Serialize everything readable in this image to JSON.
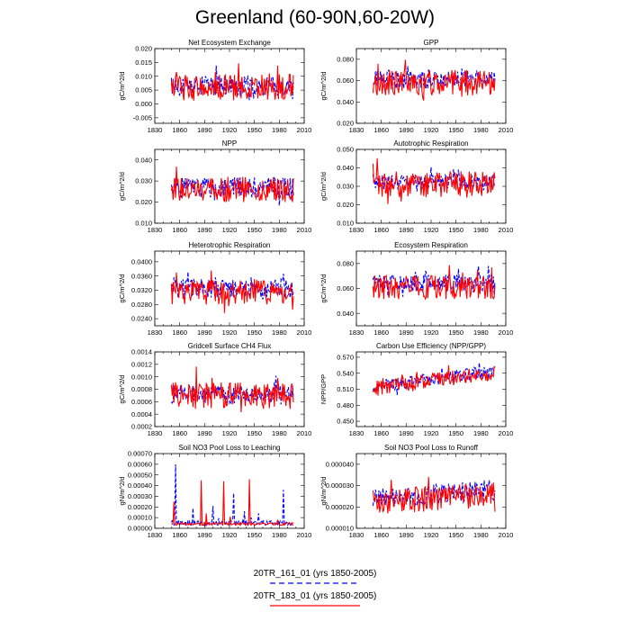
{
  "figure": {
    "title": "Greenland (60-90N,60-20W)",
    "legend": [
      {
        "label": "20TR_161_01 (yrs 1850-2005)",
        "color": "#0000ff",
        "dash": "dashed"
      },
      {
        "label": "20TR_183_01 (yrs 1850-2005)",
        "color": "#ff0000",
        "dash": "solid"
      }
    ]
  },
  "chart_data": [
    {
      "type": "line",
      "title": "Net Ecosystem Exchange",
      "ylabel": "gC/m^2/d",
      "xlim": [
        1830,
        2010
      ],
      "xticks": [
        1830,
        1860,
        1890,
        1920,
        1950,
        1980,
        2010
      ],
      "ylim": [
        -0.007,
        0.02
      ],
      "yticks": [
        -0.005,
        0.0,
        0.005,
        0.01,
        0.015,
        0.02
      ],
      "ytick_labels": [
        "-0.005",
        "0.000",
        "0.005",
        "0.010",
        "0.015",
        "0.020"
      ],
      "x_start": 1850,
      "x_step": 1,
      "series": [
        {
          "color": "#0000ff",
          "dash": "dashed",
          "mean": 0.0065,
          "amp": 0.003,
          "lo": -0.002,
          "hi": 0.014,
          "seed": 11
        },
        {
          "color": "#ff0000",
          "dash": "solid",
          "mean": 0.006,
          "amp": 0.004,
          "lo": -0.007,
          "hi": 0.017,
          "seed": 12
        }
      ]
    },
    {
      "type": "line",
      "title": "GPP",
      "ylabel": "gC/m^2/d",
      "xlim": [
        1830,
        2010
      ],
      "xticks": [
        1830,
        1860,
        1890,
        1920,
        1950,
        1980,
        2010
      ],
      "ylim": [
        0.02,
        0.09
      ],
      "yticks": [
        0.02,
        0.04,
        0.06,
        0.08
      ],
      "ytick_labels": [
        "0.020",
        "0.040",
        "0.060",
        "0.080"
      ],
      "x_start": 1850,
      "x_step": 1,
      "series": [
        {
          "color": "#0000ff",
          "dash": "dashed",
          "mean": 0.061,
          "amp": 0.007,
          "lo": 0.04,
          "hi": 0.078,
          "seed": 21
        },
        {
          "color": "#ff0000",
          "dash": "solid",
          "mean": 0.058,
          "amp": 0.01,
          "lo": 0.03,
          "hi": 0.088,
          "seed": 22
        }
      ]
    },
    {
      "type": "line",
      "title": "NPP",
      "ylabel": "gC/m^2/d",
      "xlim": [
        1830,
        2010
      ],
      "xticks": [
        1830,
        1860,
        1890,
        1920,
        1950,
        1980,
        2010
      ],
      "ylim": [
        0.01,
        0.045
      ],
      "yticks": [
        0.01,
        0.02,
        0.03,
        0.04
      ],
      "ytick_labels": [
        "0.010",
        "0.020",
        "0.030",
        "0.040"
      ],
      "x_start": 1850,
      "x_step": 1,
      "series": [
        {
          "color": "#0000ff",
          "dash": "dashed",
          "mean": 0.027,
          "amp": 0.004,
          "lo": 0.015,
          "hi": 0.036,
          "seed": 31
        },
        {
          "color": "#ff0000",
          "dash": "solid",
          "mean": 0.026,
          "amp": 0.005,
          "lo": 0.013,
          "hi": 0.041,
          "seed": 32
        }
      ]
    },
    {
      "type": "line",
      "title": "Autotrophic Respiration",
      "ylabel": "gC/m^2/d",
      "xlim": [
        1830,
        2010
      ],
      "xticks": [
        1830,
        1860,
        1890,
        1920,
        1950,
        1980,
        2010
      ],
      "ylim": [
        0.01,
        0.05
      ],
      "yticks": [
        0.01,
        0.02,
        0.03,
        0.04,
        0.05
      ],
      "ytick_labels": [
        "0.010",
        "0.020",
        "0.030",
        "0.040",
        "0.050"
      ],
      "x_start": 1850,
      "x_step": 1,
      "series": [
        {
          "color": "#0000ff",
          "dash": "dashed",
          "mean": 0.032,
          "amp": 0.004,
          "lo": 0.022,
          "hi": 0.042,
          "seed": 41
        },
        {
          "color": "#ff0000",
          "dash": "solid",
          "mean": 0.031,
          "amp": 0.006,
          "lo": 0.016,
          "hi": 0.046,
          "seed": 42
        }
      ]
    },
    {
      "type": "line",
      "title": "Heterotrophic Respiration",
      "ylabel": "gC/m^2/d",
      "xlim": [
        1830,
        2010
      ],
      "xticks": [
        1830,
        1860,
        1890,
        1920,
        1950,
        1980,
        2010
      ],
      "ylim": [
        0.022,
        0.043
      ],
      "yticks": [
        0.024,
        0.028,
        0.032,
        0.036,
        0.04
      ],
      "ytick_labels": [
        "0.0240",
        "0.0280",
        "0.0320",
        "0.0360",
        "0.0400"
      ],
      "x_start": 1850,
      "x_step": 1,
      "series": [
        {
          "color": "#0000ff",
          "dash": "dashed",
          "mean": 0.0325,
          "amp": 0.0022,
          "lo": 0.026,
          "hi": 0.039,
          "seed": 51
        },
        {
          "color": "#ff0000",
          "dash": "solid",
          "mean": 0.0315,
          "amp": 0.003,
          "lo": 0.025,
          "hi": 0.041,
          "seed": 52
        }
      ]
    },
    {
      "type": "line",
      "title": "Ecosystem Respiration",
      "ylabel": "gC/m^2/d",
      "xlim": [
        1830,
        2010
      ],
      "xticks": [
        1830,
        1860,
        1890,
        1920,
        1950,
        1980,
        2010
      ],
      "ylim": [
        0.03,
        0.09
      ],
      "yticks": [
        0.04,
        0.06,
        0.08
      ],
      "ytick_labels": [
        "0.040",
        "0.060",
        "0.080"
      ],
      "x_start": 1850,
      "x_step": 1,
      "series": [
        {
          "color": "#0000ff",
          "dash": "dashed",
          "mean": 0.064,
          "amp": 0.006,
          "lo": 0.05,
          "hi": 0.078,
          "seed": 61
        },
        {
          "color": "#ff0000",
          "dash": "solid",
          "mean": 0.061,
          "amp": 0.008,
          "lo": 0.04,
          "hi": 0.085,
          "seed": 62
        }
      ]
    },
    {
      "type": "line",
      "title": "Gridcell Surface CH4 Flux",
      "ylabel": "gC/m^2/d",
      "xlim": [
        1830,
        2010
      ],
      "xticks": [
        1830,
        1860,
        1890,
        1920,
        1950,
        1980,
        2010
      ],
      "ylim": [
        0.0002,
        0.0014
      ],
      "yticks": [
        0.0002,
        0.0004,
        0.0006,
        0.0008,
        0.001,
        0.0012,
        0.0014
      ],
      "ytick_labels": [
        "0.0002",
        "0.0004",
        "0.0006",
        "0.0008",
        "0.0010",
        "0.0012",
        "0.0014"
      ],
      "x_start": 1850,
      "x_step": 1,
      "series": [
        {
          "color": "#0000ff",
          "dash": "dashed",
          "mean": 0.00072,
          "amp": 0.00012,
          "lo": 0.0004,
          "hi": 0.0013,
          "seed": 71
        },
        {
          "color": "#ff0000",
          "dash": "solid",
          "mean": 0.0007,
          "amp": 0.00018,
          "lo": 0.00035,
          "hi": 0.00125,
          "seed": 72
        }
      ]
    },
    {
      "type": "line",
      "title": "Carbon Use Efficiency (NPP/GPP)",
      "ylabel": "NPP/GPP",
      "xlim": [
        1830,
        2010
      ],
      "xticks": [
        1830,
        1860,
        1890,
        1920,
        1950,
        1980,
        2010
      ],
      "ylim": [
        0.44,
        0.58
      ],
      "yticks": [
        0.45,
        0.48,
        0.51,
        0.54,
        0.57
      ],
      "ytick_labels": [
        "0.450",
        "0.480",
        "0.510",
        "0.540",
        "0.570"
      ],
      "x_start": 1850,
      "x_step": 1,
      "series": [
        {
          "color": "#0000ff",
          "dash": "dashed",
          "mean": 0.514,
          "amp": 0.01,
          "lo": 0.46,
          "hi": 0.565,
          "seed": 81,
          "trend": 0.03
        },
        {
          "color": "#ff0000",
          "dash": "solid",
          "mean": 0.512,
          "amp": 0.012,
          "lo": 0.47,
          "hi": 0.56,
          "seed": 82,
          "trend": 0.03
        }
      ]
    },
    {
      "type": "line",
      "title": "Soil NO3 Pool Loss to Leaching",
      "ylabel": "gN/m^2/d",
      "xlim": [
        1830,
        2010
      ],
      "xticks": [
        1830,
        1860,
        1890,
        1920,
        1950,
        1980,
        2010
      ],
      "ylim": [
        0.0,
        0.0007
      ],
      "yticks": [
        0.0,
        0.0001,
        0.0002,
        0.0003,
        0.0004,
        0.0005,
        0.0006,
        0.0007
      ],
      "ytick_labels": [
        "0.00000",
        "0.00010",
        "0.00020",
        "0.00030",
        "0.00040",
        "0.00050",
        "0.00060",
        "0.00070"
      ],
      "x_start": 1850,
      "x_step": 1,
      "series": [
        {
          "color": "#0000ff",
          "dash": "dashed",
          "mean": 5e-05,
          "amp": 2e-05,
          "lo": 3e-05,
          "hi": 0.0006,
          "seed": 91,
          "spikes": [
            [
              1855,
              0.0006
            ],
            [
              1876,
              0.00019
            ],
            [
              1900,
              0.00021
            ],
            [
              1925,
              0.00033
            ],
            [
              1938,
              0.00016
            ],
            [
              1955,
              0.00014
            ],
            [
              1985,
              0.00036
            ]
          ]
        },
        {
          "color": "#ff0000",
          "dash": "solid",
          "mean": 4e-05,
          "amp": 1e-05,
          "lo": 2e-05,
          "hi": 0.00047,
          "seed": 92,
          "spikes": [
            [
              1853,
              0.00025
            ],
            [
              1886,
              0.00045
            ],
            [
              1892,
              0.00014
            ],
            [
              1913,
              0.00044
            ],
            [
              1921,
              0.00011
            ],
            [
              1944,
              0.00046
            ],
            [
              1978,
              8e-05
            ]
          ]
        }
      ]
    },
    {
      "type": "line",
      "title": "Soil NO3 Pool Loss to Runoff",
      "ylabel": "gN/m^2/d",
      "xlim": [
        1830,
        2010
      ],
      "xticks": [
        1830,
        1860,
        1890,
        1920,
        1950,
        1980,
        2010
      ],
      "ylim": [
        1e-05,
        4.5e-05
      ],
      "yticks": [
        1e-05,
        2e-05,
        3e-05,
        4e-05
      ],
      "ytick_labels": [
        "0.000010",
        "0.000020",
        "0.000030",
        "0.000040"
      ],
      "x_start": 1850,
      "x_step": 1,
      "series": [
        {
          "color": "#0000ff",
          "dash": "dashed",
          "mean": 2.4e-05,
          "amp": 4e-06,
          "lo": 1.3e-05,
          "hi": 3.9e-05,
          "seed": 101,
          "trend": 4e-06
        },
        {
          "color": "#ff0000",
          "dash": "solid",
          "mean": 2.2e-05,
          "amp": 5e-06,
          "lo": 1.2e-05,
          "hi": 4.1e-05,
          "seed": 102,
          "trend": 4e-06
        }
      ]
    }
  ]
}
